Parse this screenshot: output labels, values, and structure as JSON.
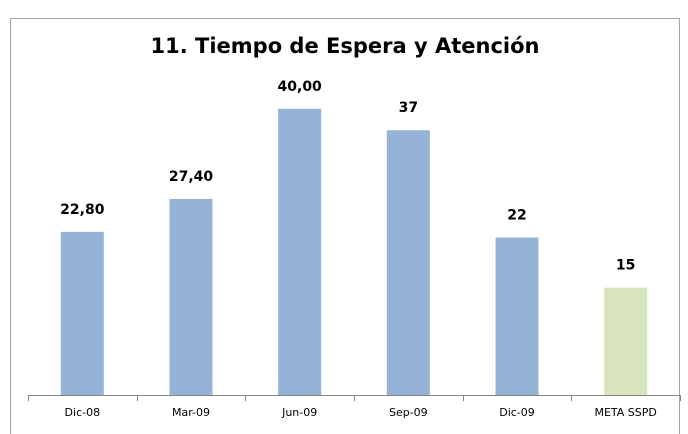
{
  "chart_data": {
    "type": "bar",
    "title": "11. Tiempo de Espera y Atención",
    "categories": [
      "Dic-08",
      "Mar-09",
      "Jun-09",
      "Sep-09",
      "Dic-09",
      "META SSPD"
    ],
    "values": [
      22.8,
      27.4,
      40,
      37,
      22,
      15
    ],
    "value_labels": [
      "22,80",
      "27,40",
      "40,00",
      "37",
      "22",
      "15"
    ],
    "colors": [
      "#95b3d7",
      "#95b3d7",
      "#95b3d7",
      "#95b3d7",
      "#95b3d7",
      "#d7e4bd"
    ],
    "ylim": [
      0,
      45
    ],
    "grid": false
  }
}
